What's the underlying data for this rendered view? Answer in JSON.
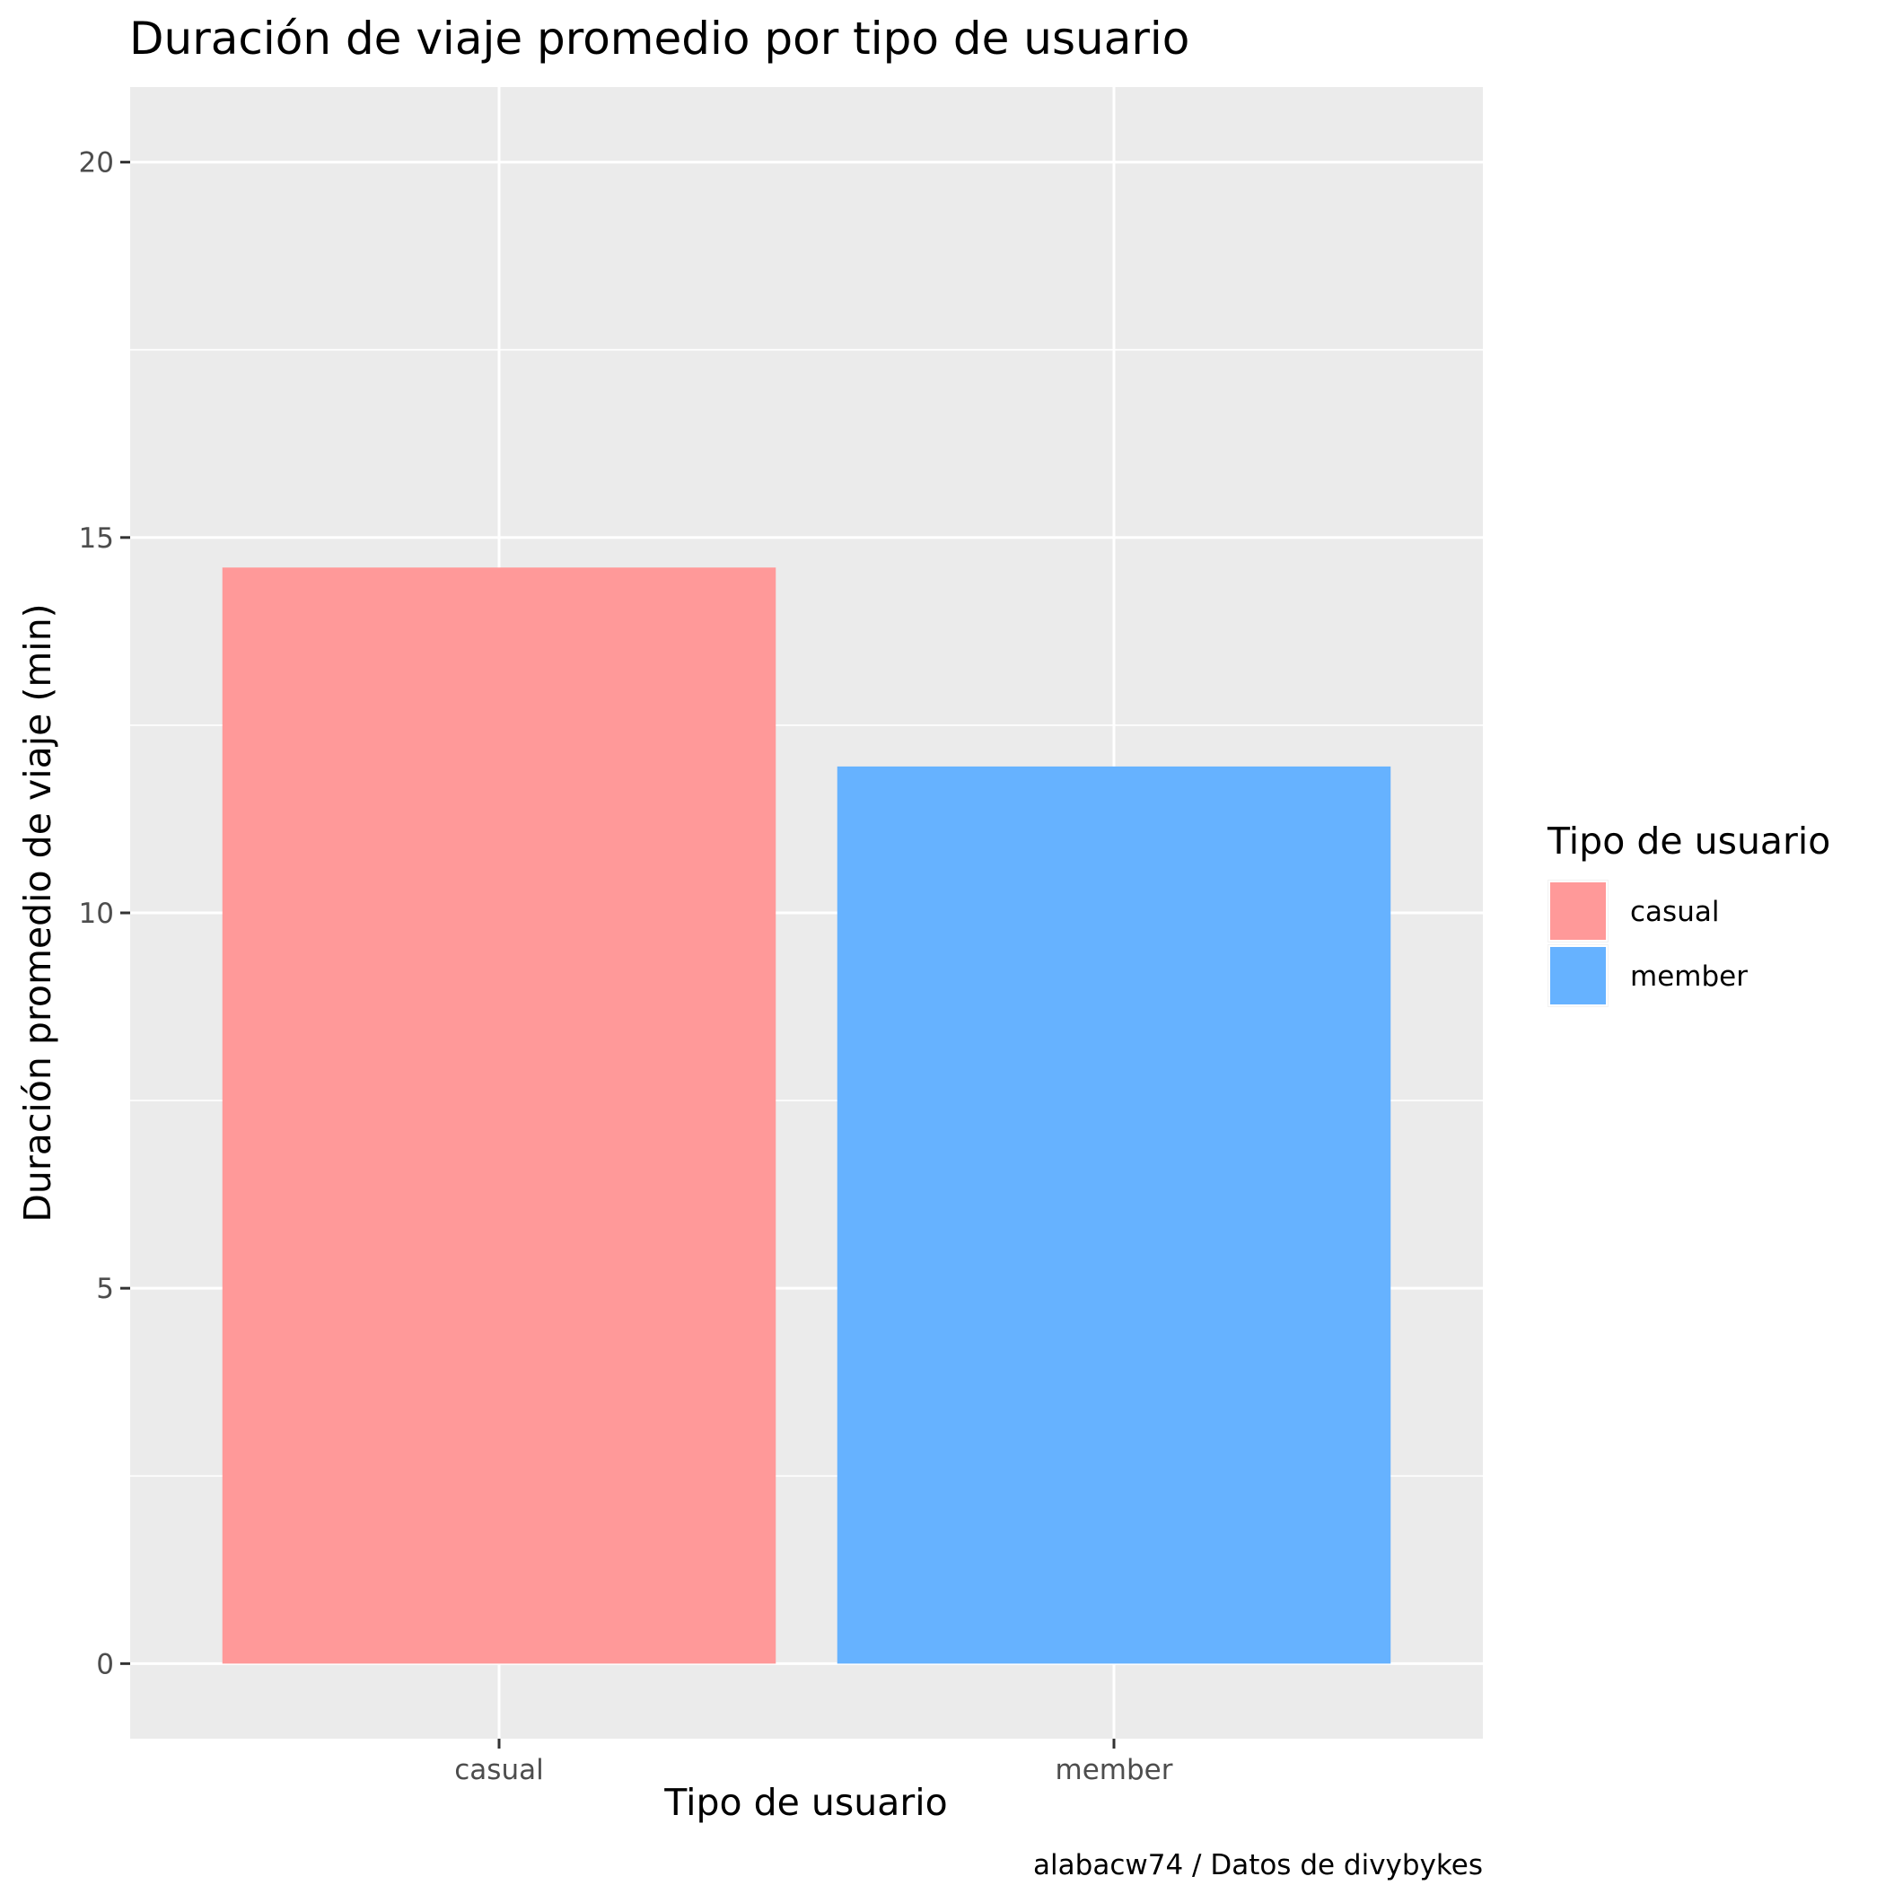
{
  "chart_data": {
    "type": "bar",
    "title": "Duración de viaje promedio por tipo de usuario",
    "xlabel": "Tipo de usuario",
    "ylabel": "Duración promedio de viaje (min)",
    "caption": "alabacw74 / Datos de divybykes",
    "categories": [
      "casual",
      "member"
    ],
    "values": [
      14.6,
      11.95
    ],
    "colors": [
      "#ff9999",
      "#66b2ff"
    ],
    "ylim": [
      -1,
      21
    ],
    "yticks": [
      0,
      5,
      10,
      15,
      20
    ],
    "ytick_labels": [
      "0",
      "5",
      "10",
      "15",
      "20"
    ],
    "grid": true,
    "legend": {
      "title": "Tipo de usuario",
      "position": "right",
      "entries": [
        "casual",
        "member"
      ]
    }
  }
}
